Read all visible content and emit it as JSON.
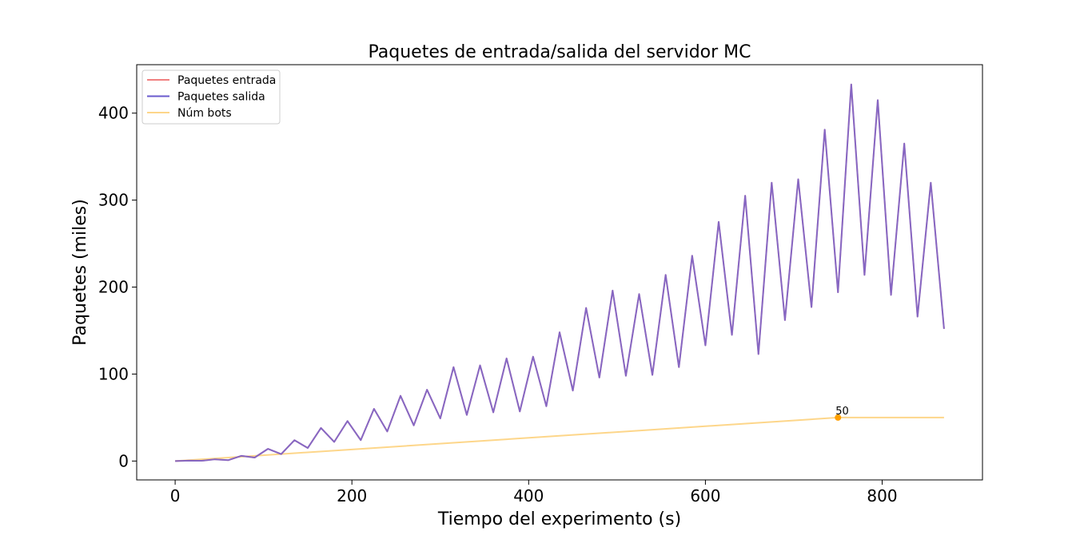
{
  "chart_data": {
    "type": "line",
    "title": "Paquetes de entrada/salida del servidor MC",
    "xlabel": "Tiempo del experimento (s)",
    "ylabel": "Paquetes (miles)",
    "xlim": [
      -43.5,
      913.5
    ],
    "ylim": [
      -21.7,
      455.7
    ],
    "xticks": [
      0,
      200,
      400,
      600,
      800
    ],
    "yticks": [
      0,
      100,
      200,
      300,
      400
    ],
    "grid": false,
    "legend_position": "upper-left",
    "series": [
      {
        "name": "Paquetes entrada",
        "color": "#f08080",
        "x": [
          0,
          15,
          30,
          45,
          60,
          75,
          90,
          105,
          120,
          135,
          150,
          165,
          180,
          195,
          210,
          225,
          240,
          255,
          270,
          285,
          300,
          315,
          330,
          345,
          360,
          375,
          390,
          405,
          420,
          435,
          450,
          465,
          480,
          495,
          510,
          525,
          540,
          555,
          570,
          585,
          600,
          615,
          630,
          645,
          660,
          675,
          690,
          705,
          720,
          735,
          750,
          765,
          780,
          795,
          810,
          825,
          840,
          855,
          870
        ],
        "values": [
          0,
          0.5,
          0.3,
          2,
          1,
          6,
          4,
          14,
          8,
          24,
          15,
          38,
          22,
          46,
          24,
          60,
          34,
          75,
          41,
          82,
          49,
          108,
          53,
          110,
          56,
          118,
          57,
          120,
          63,
          148,
          81,
          176,
          96,
          196,
          98,
          192,
          99,
          214,
          108,
          236,
          133,
          275,
          145,
          305,
          123,
          320,
          162,
          324,
          177,
          381,
          194,
          433,
          214,
          415,
          191,
          365,
          166,
          320,
          152
        ]
      },
      {
        "name": "Paquetes salida",
        "color": "#6a5acd",
        "x": [
          0,
          15,
          30,
          45,
          60,
          75,
          90,
          105,
          120,
          135,
          150,
          165,
          180,
          195,
          210,
          225,
          240,
          255,
          270,
          285,
          300,
          315,
          330,
          345,
          360,
          375,
          390,
          405,
          420,
          435,
          450,
          465,
          480,
          495,
          510,
          525,
          540,
          555,
          570,
          585,
          600,
          615,
          630,
          645,
          660,
          675,
          690,
          705,
          720,
          735,
          750,
          765,
          780,
          795,
          810,
          825,
          840,
          855,
          870
        ],
        "values": [
          0,
          0.5,
          0.3,
          2,
          1,
          6,
          4,
          14,
          8,
          24,
          15,
          38,
          22,
          46,
          24,
          60,
          34,
          75,
          41,
          82,
          49,
          108,
          53,
          110,
          56,
          118,
          57,
          120,
          63,
          148,
          81,
          176,
          96,
          196,
          98,
          192,
          99,
          214,
          108,
          236,
          133,
          275,
          145,
          305,
          123,
          320,
          162,
          324,
          177,
          381,
          194,
          433,
          214,
          415,
          191,
          365,
          166,
          320,
          152
        ]
      },
      {
        "name": "Núm bots",
        "color": "#fdd68a",
        "x": [
          0,
          750,
          870
        ],
        "values": [
          0,
          50,
          50
        ]
      }
    ],
    "annotations": [
      {
        "text": "50",
        "x": 750,
        "y": 50,
        "marker_color": "#ff9f00"
      }
    ],
    "x_tick_labels": [
      "0",
      "200",
      "400",
      "600",
      "800"
    ],
    "y_tick_labels": [
      "0",
      "100",
      "200",
      "300",
      "400"
    ]
  }
}
